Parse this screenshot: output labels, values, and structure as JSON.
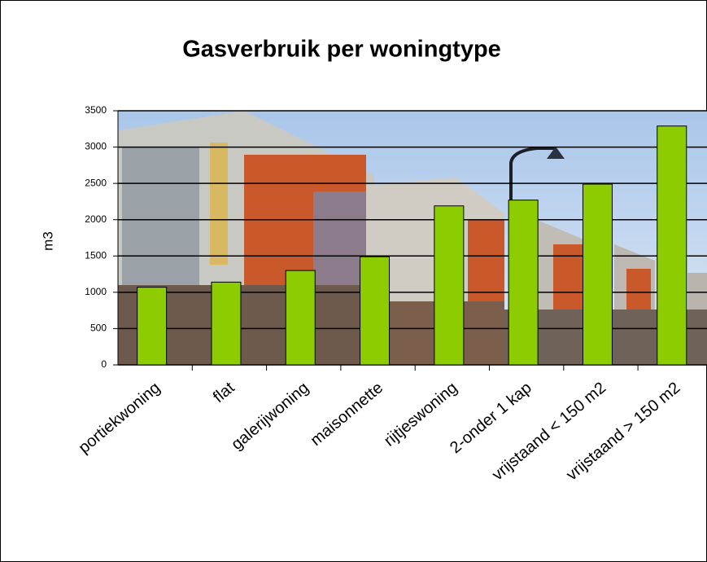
{
  "chart_data": {
    "type": "bar",
    "title": "Gasverbruik per woningtype",
    "y_label": "m3",
    "categories": [
      "portiekwoning",
      "flat",
      "galerijwoning",
      "maisonnette",
      "rijtjeswoning",
      "2-onder 1 kap",
      "vrijstaand < 150 m2",
      "vrijstaand > 150 m2"
    ],
    "values": [
      1070,
      1140,
      1300,
      1490,
      2190,
      2270,
      2490,
      3290
    ],
    "color": "#8ccc00",
    "ylim": [
      0,
      3500
    ],
    "yticks": [
      0,
      500,
      1000,
      1500,
      2000,
      2500,
      3000,
      3500
    ],
    "grid": true
  }
}
